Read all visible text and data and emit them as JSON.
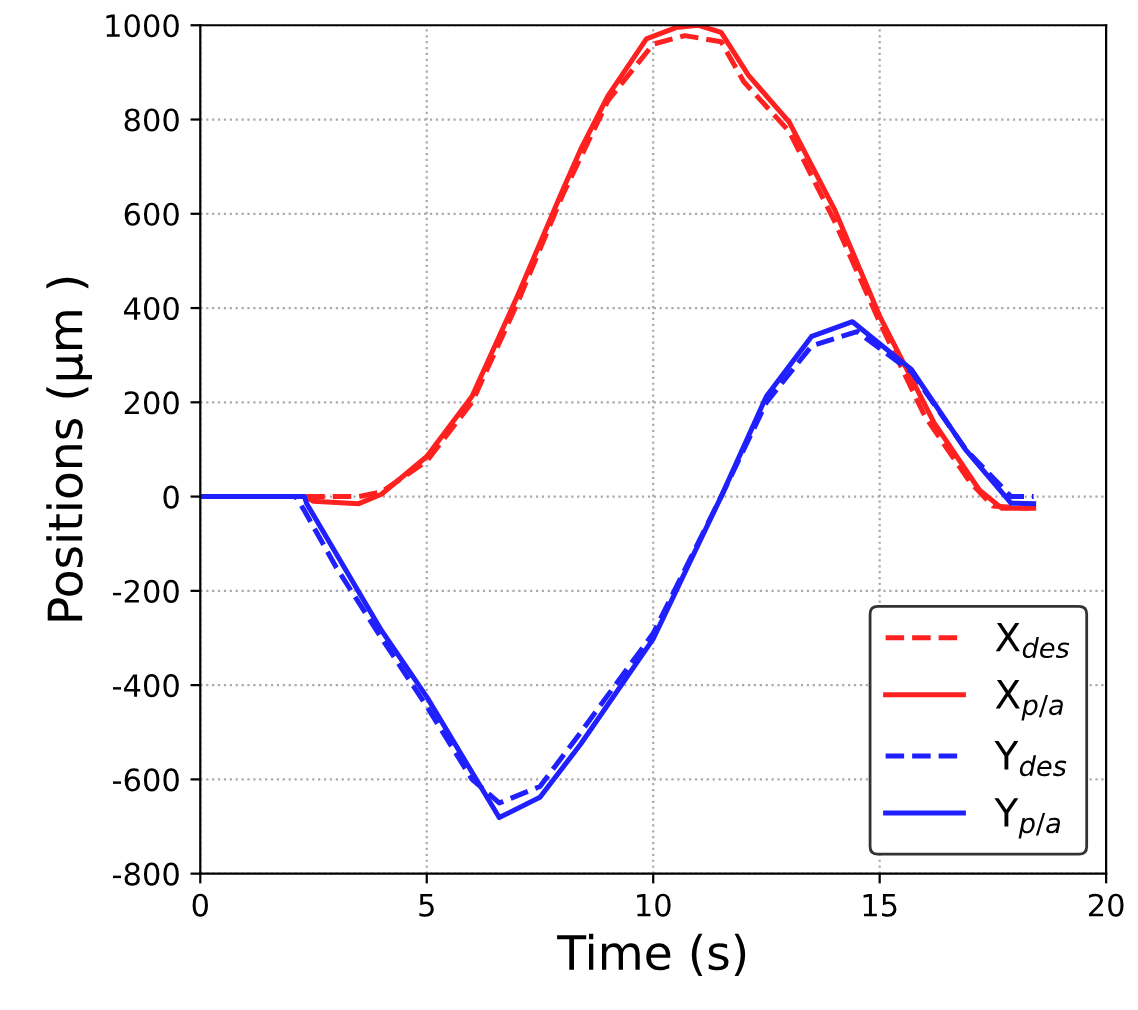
{
  "chart_data": {
    "type": "line",
    "xlabel": "Time (s)",
    "ylabel": "Positions (μm )",
    "xlim": [
      0,
      20
    ],
    "ylim": [
      -800,
      1000
    ],
    "xticks": [
      0,
      5,
      10,
      15,
      20
    ],
    "yticks": [
      -800,
      -600,
      -400,
      -200,
      0,
      200,
      400,
      600,
      800,
      1000
    ],
    "grid": true,
    "legend": "bottom right",
    "series": [
      {
        "name": "X$_{des}$",
        "color": "#ff2020",
        "line_style": "dashed",
        "x": [
          0,
          3.5,
          4,
          5,
          6,
          7,
          8,
          9,
          10,
          10.7,
          11.5,
          12,
          13,
          14,
          15,
          16,
          17,
          17.5,
          18.3
        ],
        "values": [
          0,
          0,
          10,
          75,
          200,
          410,
          640,
          840,
          960,
          978,
          965,
          880,
          775,
          585,
          370,
          170,
          30,
          -20,
          -25
        ]
      },
      {
        "name": "X$_{p/a}$",
        "color": "#ff2020",
        "line_style": "solid",
        "x": [
          0,
          2.3,
          2.5,
          3.5,
          4,
          5,
          6,
          7,
          8,
          8.4,
          9,
          9.85,
          10.5,
          11,
          11.5,
          12.1,
          13,
          14,
          15,
          16.2,
          17.2,
          17.7,
          18.4
        ],
        "values": [
          0,
          0,
          -10,
          -15,
          5,
          85,
          213,
          425,
          650,
          737,
          850,
          971,
          995,
          1000,
          985,
          894,
          795,
          610,
          383,
          157,
          14,
          -25,
          -25
        ]
      },
      {
        "name": "Y$_{des}$",
        "color": "#2020ff",
        "line_style": "dashed",
        "x": [
          0,
          2.1,
          2.3,
          3,
          4,
          5,
          6,
          6.6,
          7.5,
          8.4,
          10,
          11.5,
          12.5,
          13.5,
          14.5,
          15.7,
          16.9,
          17.9,
          18.4
        ],
        "values": [
          0,
          0,
          -30,
          -150,
          -300,
          -445,
          -600,
          -650,
          -615,
          -500,
          -290,
          0,
          200,
          320,
          350,
          265,
          100,
          0,
          0
        ]
      },
      {
        "name": "Y$_{p/a}$",
        "color": "#2020ff",
        "line_style": "solid",
        "x": [
          0,
          2.3,
          2.35,
          4,
          5,
          6.6,
          7.5,
          8.4,
          10,
          11.5,
          12.5,
          13.5,
          14.4,
          15.7,
          16.9,
          17.9,
          18.4
        ],
        "values": [
          0,
          0,
          -15,
          -284,
          -425,
          -681,
          -638,
          -525,
          -302,
          0,
          213,
          340,
          371,
          270,
          99,
          -14,
          -15
        ]
      }
    ]
  }
}
